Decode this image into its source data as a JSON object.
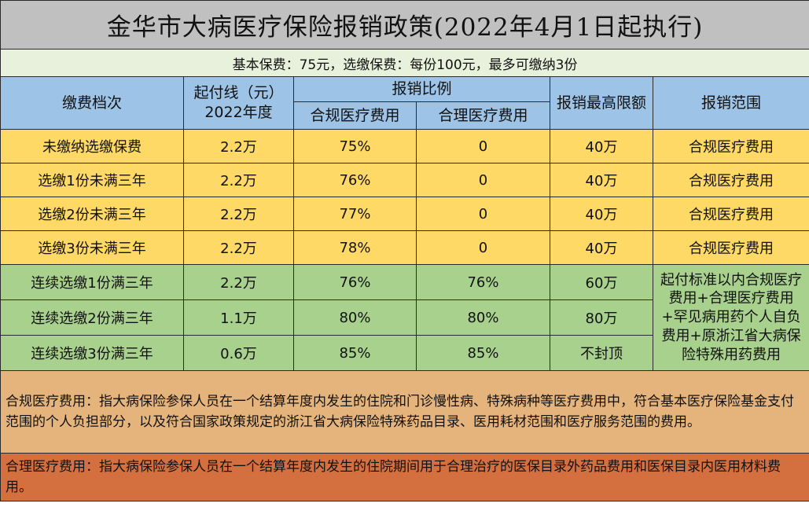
{
  "title": "金华市大病医疗保险报销政策(2022年4月1日起执行)",
  "subtitle": "基本保费：75元，选缴保费：每份100元，最多可缴纳3份",
  "headers": {
    "tier": "缴费档次",
    "deductible": "起付线（元）\n2022年度",
    "ratio_group": "报销比例",
    "compliant": "合规医疗费用",
    "reasonable": "合理医疗费用",
    "cap": "报销最高限额",
    "scope": "报销范围"
  },
  "rows": [
    {
      "tier": "未缴纳选缴保费",
      "deductible": "2.2万",
      "compliant": "75%",
      "reasonable": "0",
      "cap": "40万",
      "scope": "合规医疗费用"
    },
    {
      "tier": "选缴1份未满三年",
      "deductible": "2.2万",
      "compliant": "76%",
      "reasonable": "0",
      "cap": "40万",
      "scope": "合规医疗费用"
    },
    {
      "tier": "选缴2份未满三年",
      "deductible": "2.2万",
      "compliant": "77%",
      "reasonable": "0",
      "cap": "40万",
      "scope": "合规医疗费用"
    },
    {
      "tier": "选缴3份未满三年",
      "deductible": "2.2万",
      "compliant": "78%",
      "reasonable": "0",
      "cap": "40万",
      "scope": "合规医疗费用"
    },
    {
      "tier": "连续选缴1份满三年",
      "deductible": "2.2万",
      "compliant": "76%",
      "reasonable": "76%",
      "cap": "60万"
    },
    {
      "tier": "连续选缴2份满三年",
      "deductible": "1.1万",
      "compliant": "80%",
      "reasonable": "80%",
      "cap": "80万"
    },
    {
      "tier": "连续选缴3份满三年",
      "deductible": "0.6万",
      "compliant": "85%",
      "reasonable": "85%",
      "cap": "不封顶"
    }
  ],
  "merged_scope": "起付标准以内合规医疗费用+合理医疗费用+罕见病用药个人自负费用+原浙江省大病保险特殊用药费用",
  "notes": {
    "compliant": "合规医疗费用：指大病保险参保人员在一个结算年度内发生的住院和门诊慢性病、特殊病种等医疗费用中，符合基本医疗保险基金支付范围的个人负担部分，以及符合国家政策规定的浙江省大病保险特殊药品目录、医用耗材范围和医疗服务范围的费用。",
    "reasonable": "合理医疗费用：指大病保险参保人员在一个结算年度内发生的住院期间用于合理治疗的医保目录外药品费用和医保目录内医用材料费用。"
  },
  "colors": {
    "title_bg": "#c0c0c0",
    "subtitle_bg": "#e8f1dc",
    "header_bg": "#9dc3e6",
    "yellow_rows": "#ffd965",
    "green_rows": "#a9d18e",
    "note1_bg": "#e5b47d",
    "note2_bg": "#d4703f"
  }
}
